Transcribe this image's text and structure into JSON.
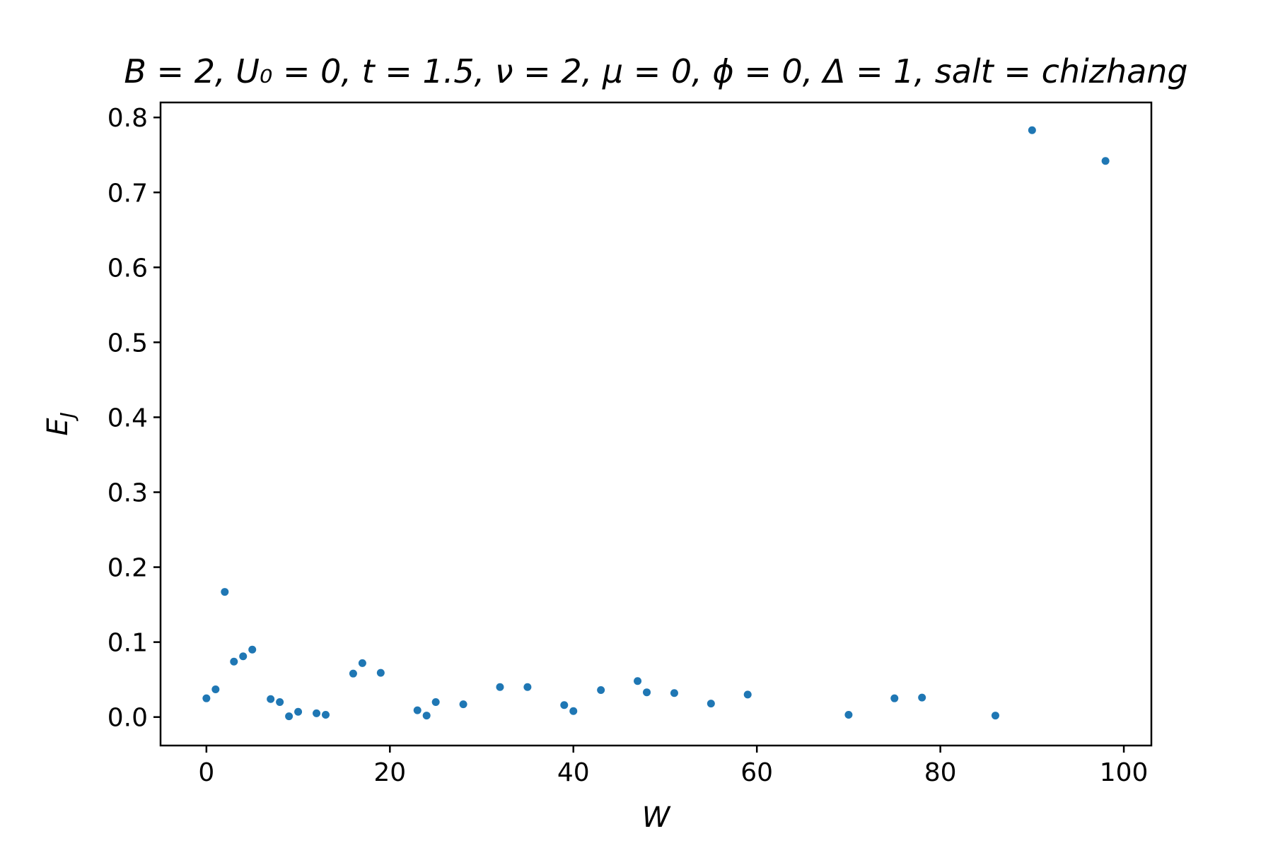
{
  "chart_data": {
    "type": "scatter",
    "title": "B = 2, U₀ = 0, t = 1.5, ν = 2, μ = 0, ϕ = 0, Δ = 1, salt = chizhang",
    "xlabel": "W",
    "ylabel": "E_J",
    "xlim": [
      -5,
      103
    ],
    "ylim": [
      -0.038,
      0.82
    ],
    "xticks": [
      0,
      20,
      40,
      60,
      80,
      100
    ],
    "xtick_labels": [
      "0",
      "20",
      "40",
      "60",
      "80",
      "100"
    ],
    "yticks": [
      0.0,
      0.1,
      0.2,
      0.3,
      0.4,
      0.5,
      0.6,
      0.7,
      0.8
    ],
    "ytick_labels": [
      "0.0",
      "0.1",
      "0.2",
      "0.3",
      "0.4",
      "0.5",
      "0.6",
      "0.7",
      "0.8"
    ],
    "grid": false,
    "marker_color": "#1f77b4",
    "series": [
      {
        "name": "E_J",
        "points": [
          [
            0,
            0.025
          ],
          [
            1,
            0.037
          ],
          [
            2,
            0.167
          ],
          [
            3,
            0.074
          ],
          [
            4,
            0.081
          ],
          [
            5,
            0.09
          ],
          [
            7,
            0.024
          ],
          [
            8,
            0.02
          ],
          [
            9,
            0.001
          ],
          [
            10,
            0.007
          ],
          [
            12,
            0.005
          ],
          [
            13,
            0.003
          ],
          [
            16,
            0.058
          ],
          [
            17,
            0.072
          ],
          [
            19,
            0.059
          ],
          [
            23,
            0.009
          ],
          [
            24,
            0.002
          ],
          [
            25,
            0.02
          ],
          [
            28,
            0.017
          ],
          [
            32,
            0.04
          ],
          [
            35,
            0.04
          ],
          [
            39,
            0.016
          ],
          [
            40,
            0.008
          ],
          [
            43,
            0.036
          ],
          [
            47,
            0.048
          ],
          [
            48,
            0.033
          ],
          [
            51,
            0.032
          ],
          [
            55,
            0.018
          ],
          [
            59,
            0.03
          ],
          [
            70,
            0.003
          ],
          [
            75,
            0.025
          ],
          [
            78,
            0.026
          ],
          [
            86,
            0.002
          ],
          [
            90,
            0.783
          ],
          [
            98,
            0.742
          ]
        ]
      }
    ]
  }
}
